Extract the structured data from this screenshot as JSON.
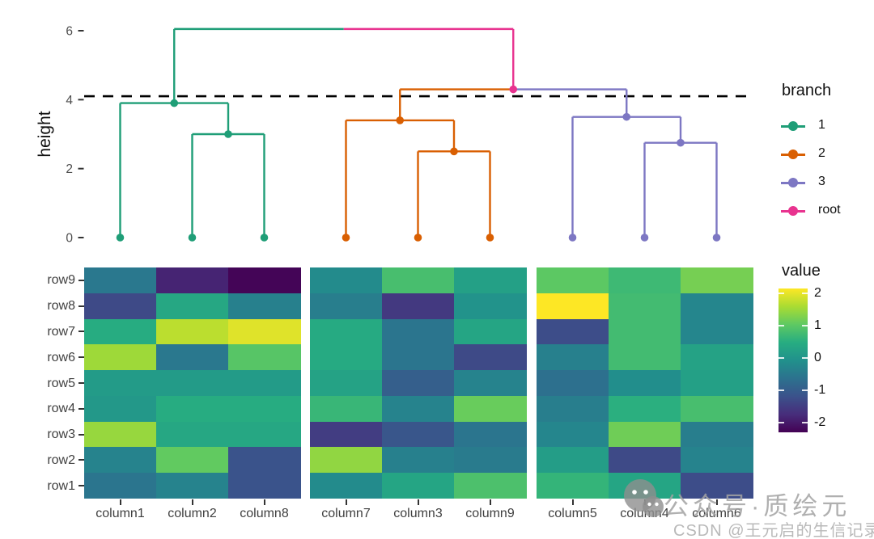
{
  "figure": {
    "background": "#ffffff"
  },
  "watermark": {
    "icon": "wechat-icon",
    "line1": "公众号·质绘元",
    "line2": "CSDN @王元启的生信记录"
  },
  "chart_data": [
    {
      "type": "dendrogram",
      "ylabel": "height",
      "yticks": [
        0,
        2,
        4,
        6
      ],
      "ylim": [
        0,
        6.3
      ],
      "cut_height": 4.1,
      "branch_colors": {
        "1": "#1f9e77",
        "2": "#d95f02",
        "3": "#7d77c3",
        "root": "#e8338f"
      },
      "legend": {
        "title": "branch",
        "items": [
          {
            "label": "1",
            "branch": "1"
          },
          {
            "label": "2",
            "branch": "2"
          },
          {
            "label": "3",
            "branch": "3"
          },
          {
            "label": "root",
            "branch": "root"
          }
        ]
      },
      "leaves": [
        {
          "label": "column1",
          "branch": "1"
        },
        {
          "label": "column2",
          "branch": "1"
        },
        {
          "label": "column8",
          "branch": "1"
        },
        {
          "label": "column7",
          "branch": "2"
        },
        {
          "label": "column3",
          "branch": "2"
        },
        {
          "label": "column9",
          "branch": "2"
        },
        {
          "label": "column5",
          "branch": "3"
        },
        {
          "label": "column4",
          "branch": "3"
        },
        {
          "label": "column6",
          "branch": "3"
        }
      ],
      "merges": [
        {
          "id": "n1",
          "children": [
            "column2",
            "column8"
          ],
          "height": 3.0,
          "branch": "1"
        },
        {
          "id": "n2",
          "children": [
            "column1",
            "n1"
          ],
          "height": 3.9,
          "branch": "1"
        },
        {
          "id": "n3",
          "children": [
            "column3",
            "column9"
          ],
          "height": 2.5,
          "branch": "2"
        },
        {
          "id": "n4",
          "children": [
            "column7",
            "n3"
          ],
          "height": 3.4,
          "branch": "2"
        },
        {
          "id": "n5",
          "children": [
            "column4",
            "column6"
          ],
          "height": 2.75,
          "branch": "3"
        },
        {
          "id": "n6",
          "children": [
            "column5",
            "n5"
          ],
          "height": 3.5,
          "branch": "3"
        },
        {
          "id": "n7",
          "children": [
            "n4",
            "n6"
          ],
          "height": 4.3,
          "branch": "root"
        },
        {
          "id": "n8",
          "children": [
            "n2",
            "n7"
          ],
          "height": 6.05,
          "branch": "root",
          "dot": false
        }
      ]
    },
    {
      "type": "heatmap",
      "rows": [
        "row9",
        "row8",
        "row7",
        "row6",
        "row5",
        "row4",
        "row3",
        "row2",
        "row1"
      ],
      "col_groups": [
        [
          "column1",
          "column2",
          "column8"
        ],
        [
          "column7",
          "column3",
          "column9"
        ],
        [
          "column5",
          "column4",
          "column6"
        ]
      ],
      "values": [
        [
          -0.55,
          -1.9,
          -2.3,
          -0.2,
          0.8,
          0.2,
          1.0,
          0.7,
          1.2
        ],
        [
          -1.35,
          0.35,
          -0.4,
          -0.45,
          -1.6,
          -0.05,
          2.15,
          0.75,
          -0.3
        ],
        [
          0.45,
          1.7,
          1.95,
          0.4,
          -0.6,
          0.3,
          -1.3,
          0.75,
          -0.3
        ],
        [
          1.5,
          -0.55,
          0.95,
          0.4,
          -0.6,
          -1.35,
          -0.4,
          0.75,
          0.25
        ],
        [
          0.1,
          0.1,
          0.1,
          0.25,
          -1.0,
          -0.35,
          -0.7,
          -0.15,
          0.2
        ],
        [
          0.05,
          0.45,
          0.45,
          0.65,
          -0.35,
          1.1,
          -0.45,
          0.5,
          0.8
        ],
        [
          1.45,
          0.35,
          0.35,
          -1.55,
          -1.15,
          -0.6,
          -0.3,
          1.15,
          -0.45
        ],
        [
          -0.35,
          1.05,
          -1.2,
          1.4,
          -0.4,
          -0.5,
          0.15,
          -1.35,
          -0.35
        ],
        [
          -0.6,
          -0.35,
          -1.2,
          -0.2,
          0.3,
          0.85,
          0.6,
          0.3,
          -1.3
        ]
      ],
      "colorbar": {
        "title": "value",
        "ticks": [
          2,
          1,
          0,
          -1,
          -2
        ],
        "domain": [
          -2.35,
          2.15
        ],
        "palette": [
          "#440154",
          "#472d7b",
          "#3b528b",
          "#2c728e",
          "#21918c",
          "#27ad81",
          "#5ec962",
          "#aadc32",
          "#fde725"
        ]
      }
    }
  ]
}
